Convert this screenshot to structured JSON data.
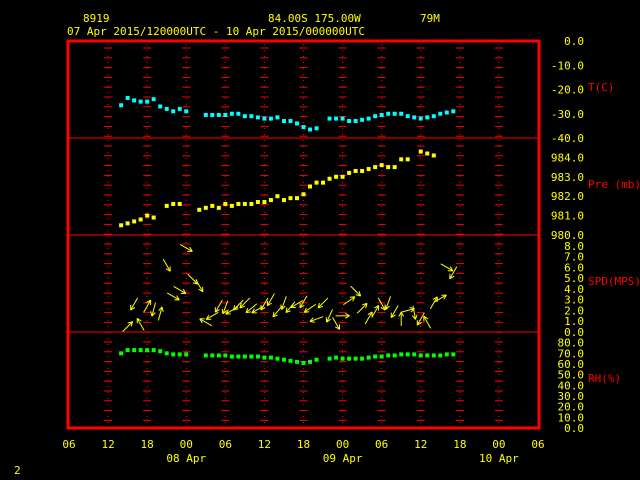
{
  "header": {
    "station_id": "8919",
    "location": "84.00S  175.00W",
    "elevation": "79M",
    "time_range": "07 Apr 2015/120000UTC - 10 Apr 2015/000000UTC"
  },
  "footer": {
    "page_number": "2"
  },
  "colors": {
    "background": "#000000",
    "frame": "#ff0000",
    "tick": "#ff0000",
    "label": "#ffff00",
    "panel_label": "#ff0000",
    "temperature": "#00ffff",
    "pressure": "#ffff00",
    "wind": "#ffff00",
    "humidity": "#00ff00"
  },
  "chart_data": {
    "type": "scatter",
    "x_axis": {
      "unit": "hours since 07 Apr 06 UTC",
      "range": [
        0,
        72
      ],
      "tick_hours": [
        0,
        6,
        12,
        18,
        24,
        30,
        36,
        42,
        48,
        54,
        60,
        66,
        72
      ],
      "tick_labels": [
        "06",
        "12",
        "18",
        "00",
        "06",
        "12",
        "18",
        "00",
        "06",
        "12",
        "18",
        "00",
        "06"
      ],
      "date_labels": [
        {
          "label": "08 Apr",
          "hour": 18
        },
        {
          "label": "09 Apr",
          "hour": 42
        },
        {
          "label": "10 Apr",
          "hour": 66
        }
      ]
    },
    "panels": [
      {
        "name": "T(C)",
        "kind": "scatter",
        "ylim": [
          -40,
          0
        ],
        "tick_values": [
          0,
          -10,
          -20,
          -30,
          -40
        ],
        "tick_labels": [
          "0.0",
          "-10.0",
          "-20.0",
          "-30.0",
          "-40.0"
        ],
        "color": "#00ffff",
        "points": [
          [
            8,
            -26.5
          ],
          [
            9,
            -23.5
          ],
          [
            10,
            -24.5
          ],
          [
            11,
            -25
          ],
          [
            12,
            -25
          ],
          [
            13,
            -24
          ],
          [
            14,
            -27
          ],
          [
            15,
            -28
          ],
          [
            16,
            -29
          ],
          [
            17,
            -28
          ],
          [
            18,
            -29
          ],
          [
            21,
            -30.5
          ],
          [
            22,
            -30.5
          ],
          [
            23,
            -30.5
          ],
          [
            24,
            -30.5
          ],
          [
            25,
            -30
          ],
          [
            26,
            -30
          ],
          [
            27,
            -31
          ],
          [
            28,
            -31
          ],
          [
            29,
            -31.5
          ],
          [
            30,
            -32
          ],
          [
            31,
            -32
          ],
          [
            32,
            -31.5
          ],
          [
            33,
            -33
          ],
          [
            34,
            -33
          ],
          [
            35,
            -34
          ],
          [
            36,
            -35.5
          ],
          [
            37,
            -36.5
          ],
          [
            38,
            -36
          ],
          [
            40,
            -32
          ],
          [
            41,
            -32
          ],
          [
            42,
            -32
          ],
          [
            43,
            -33
          ],
          [
            44,
            -33
          ],
          [
            45,
            -32.5
          ],
          [
            46,
            -32
          ],
          [
            47,
            -31
          ],
          [
            48,
            -30.5
          ],
          [
            49,
            -30
          ],
          [
            50,
            -30
          ],
          [
            51,
            -30
          ],
          [
            52,
            -31
          ],
          [
            53,
            -31.5
          ],
          [
            54,
            -32
          ],
          [
            55,
            -31.5
          ],
          [
            56,
            -31
          ],
          [
            57,
            -30
          ],
          [
            58,
            -29.5
          ],
          [
            59,
            -29
          ]
        ]
      },
      {
        "name": "Pre (mb)",
        "kind": "scatter",
        "ylim": [
          980,
          985
        ],
        "tick_values": [
          984,
          983,
          982,
          981,
          980
        ],
        "tick_labels": [
          "984.0",
          "983.0",
          "982.0",
          "981.0",
          "980.0"
        ],
        "color": "#ffff00",
        "points": [
          [
            8,
            980.5
          ],
          [
            9,
            980.6
          ],
          [
            10,
            980.7
          ],
          [
            11,
            980.8
          ],
          [
            12,
            981.0
          ],
          [
            13,
            980.9
          ],
          [
            15,
            981.5
          ],
          [
            16,
            981.6
          ],
          [
            17,
            981.6
          ],
          [
            20,
            981.3
          ],
          [
            21,
            981.4
          ],
          [
            22,
            981.5
          ],
          [
            23,
            981.4
          ],
          [
            24,
            981.6
          ],
          [
            25,
            981.5
          ],
          [
            26,
            981.6
          ],
          [
            27,
            981.6
          ],
          [
            28,
            981.6
          ],
          [
            29,
            981.7
          ],
          [
            30,
            981.7
          ],
          [
            31,
            981.8
          ],
          [
            32,
            982.0
          ],
          [
            33,
            981.8
          ],
          [
            34,
            981.9
          ],
          [
            35,
            981.9
          ],
          [
            36,
            982.1
          ],
          [
            37,
            982.5
          ],
          [
            38,
            982.7
          ],
          [
            39,
            982.7
          ],
          [
            40,
            982.9
          ],
          [
            41,
            983.0
          ],
          [
            42,
            983.0
          ],
          [
            43,
            983.2
          ],
          [
            44,
            983.3
          ],
          [
            45,
            983.3
          ],
          [
            46,
            983.4
          ],
          [
            47,
            983.5
          ],
          [
            48,
            983.6
          ],
          [
            49,
            983.5
          ],
          [
            50,
            983.5
          ],
          [
            51,
            983.9
          ],
          [
            52,
            983.9
          ],
          [
            54,
            984.3
          ],
          [
            55,
            984.2
          ],
          [
            56,
            984.1
          ]
        ]
      },
      {
        "name": "SPD(MPS)",
        "kind": "wind_arrows",
        "ylim": [
          0,
          9
        ],
        "tick_values": [
          8,
          7,
          6,
          5,
          4,
          3,
          2,
          1,
          0
        ],
        "tick_labels": [
          "8.0",
          "7.0",
          "6.0",
          "5.0",
          "4.0",
          "3.0",
          "2.0",
          "1.0",
          "0.0"
        ],
        "color": "#ffff00",
        "points": [
          [
            9,
            0.5,
            45
          ],
          [
            10,
            2.6,
            210
          ],
          [
            11,
            0.7,
            330
          ],
          [
            12,
            2.4,
            30
          ],
          [
            13,
            2.1,
            195
          ],
          [
            14,
            1.7,
            15
          ],
          [
            15,
            6.2,
            150
          ],
          [
            16,
            3.3,
            120
          ],
          [
            17,
            3.9,
            120
          ],
          [
            18,
            7.8,
            120
          ],
          [
            19,
            4.9,
            135
          ],
          [
            20,
            4.3,
            150
          ],
          [
            21,
            0.9,
            300
          ],
          [
            22,
            1.5,
            240
          ],
          [
            23,
            2.4,
            210
          ],
          [
            24,
            2.3,
            200
          ],
          [
            25,
            2.0,
            240
          ],
          [
            26,
            2.5,
            225
          ],
          [
            27,
            2.7,
            225
          ],
          [
            28,
            2.2,
            230
          ],
          [
            29,
            2.1,
            240
          ],
          [
            30,
            2.6,
            210
          ],
          [
            31,
            3.0,
            210
          ],
          [
            32,
            1.9,
            220
          ],
          [
            33,
            2.7,
            200
          ],
          [
            34,
            2.3,
            220
          ],
          [
            35,
            2.6,
            240
          ],
          [
            36,
            2.8,
            210
          ],
          [
            37,
            2.2,
            235
          ],
          [
            38,
            1.2,
            250
          ],
          [
            39,
            2.7,
            225
          ],
          [
            40,
            1.5,
            205
          ],
          [
            41,
            0.8,
            150
          ],
          [
            42,
            1.5,
            90
          ],
          [
            43,
            2.9,
            55
          ],
          [
            44,
            3.8,
            135
          ],
          [
            45,
            2.2,
            45
          ],
          [
            46,
            1.3,
            30
          ],
          [
            47,
            1.9,
            30
          ],
          [
            48,
            2.6,
            150
          ],
          [
            49,
            2.7,
            200
          ],
          [
            50,
            1.9,
            210
          ],
          [
            51,
            1.2,
            0
          ],
          [
            52,
            2.0,
            75
          ],
          [
            53,
            1.8,
            170
          ],
          [
            54,
            1.2,
            210
          ],
          [
            55,
            0.9,
            330
          ],
          [
            56,
            2.7,
            30
          ],
          [
            57,
            3.1,
            60
          ],
          [
            58,
            6.0,
            120
          ],
          [
            59,
            5.5,
            210
          ]
        ]
      },
      {
        "name": "RH(%)",
        "kind": "scatter",
        "ylim": [
          0,
          90
        ],
        "tick_values": [
          80,
          70,
          60,
          50,
          40,
          30,
          20,
          10,
          0
        ],
        "tick_labels": [
          "80.0",
          "70.0",
          "60.0",
          "50.0",
          "40.0",
          "30.0",
          "20.0",
          "10.0",
          "0.0"
        ],
        "color": "#00ff00",
        "points": [
          [
            8,
            70
          ],
          [
            9,
            73
          ],
          [
            10,
            73
          ],
          [
            11,
            73
          ],
          [
            12,
            73
          ],
          [
            13,
            73
          ],
          [
            14,
            72
          ],
          [
            15,
            70
          ],
          [
            16,
            69
          ],
          [
            17,
            69
          ],
          [
            18,
            69
          ],
          [
            21,
            68
          ],
          [
            22,
            68
          ],
          [
            23,
            68
          ],
          [
            24,
            68
          ],
          [
            25,
            67
          ],
          [
            26,
            67
          ],
          [
            27,
            67
          ],
          [
            28,
            67
          ],
          [
            29,
            67
          ],
          [
            30,
            66
          ],
          [
            31,
            66
          ],
          [
            32,
            65
          ],
          [
            33,
            64
          ],
          [
            34,
            63
          ],
          [
            35,
            62
          ],
          [
            36,
            61
          ],
          [
            37,
            62
          ],
          [
            38,
            64
          ],
          [
            40,
            65
          ],
          [
            41,
            66
          ],
          [
            42,
            65
          ],
          [
            43,
            65
          ],
          [
            44,
            65
          ],
          [
            45,
            65
          ],
          [
            46,
            66
          ],
          [
            47,
            67
          ],
          [
            48,
            67
          ],
          [
            49,
            68
          ],
          [
            50,
            68
          ],
          [
            51,
            69
          ],
          [
            52,
            69
          ],
          [
            53,
            69
          ],
          [
            54,
            68
          ],
          [
            55,
            68
          ],
          [
            56,
            68
          ],
          [
            57,
            68
          ],
          [
            58,
            69
          ],
          [
            59,
            69
          ]
        ]
      }
    ]
  }
}
